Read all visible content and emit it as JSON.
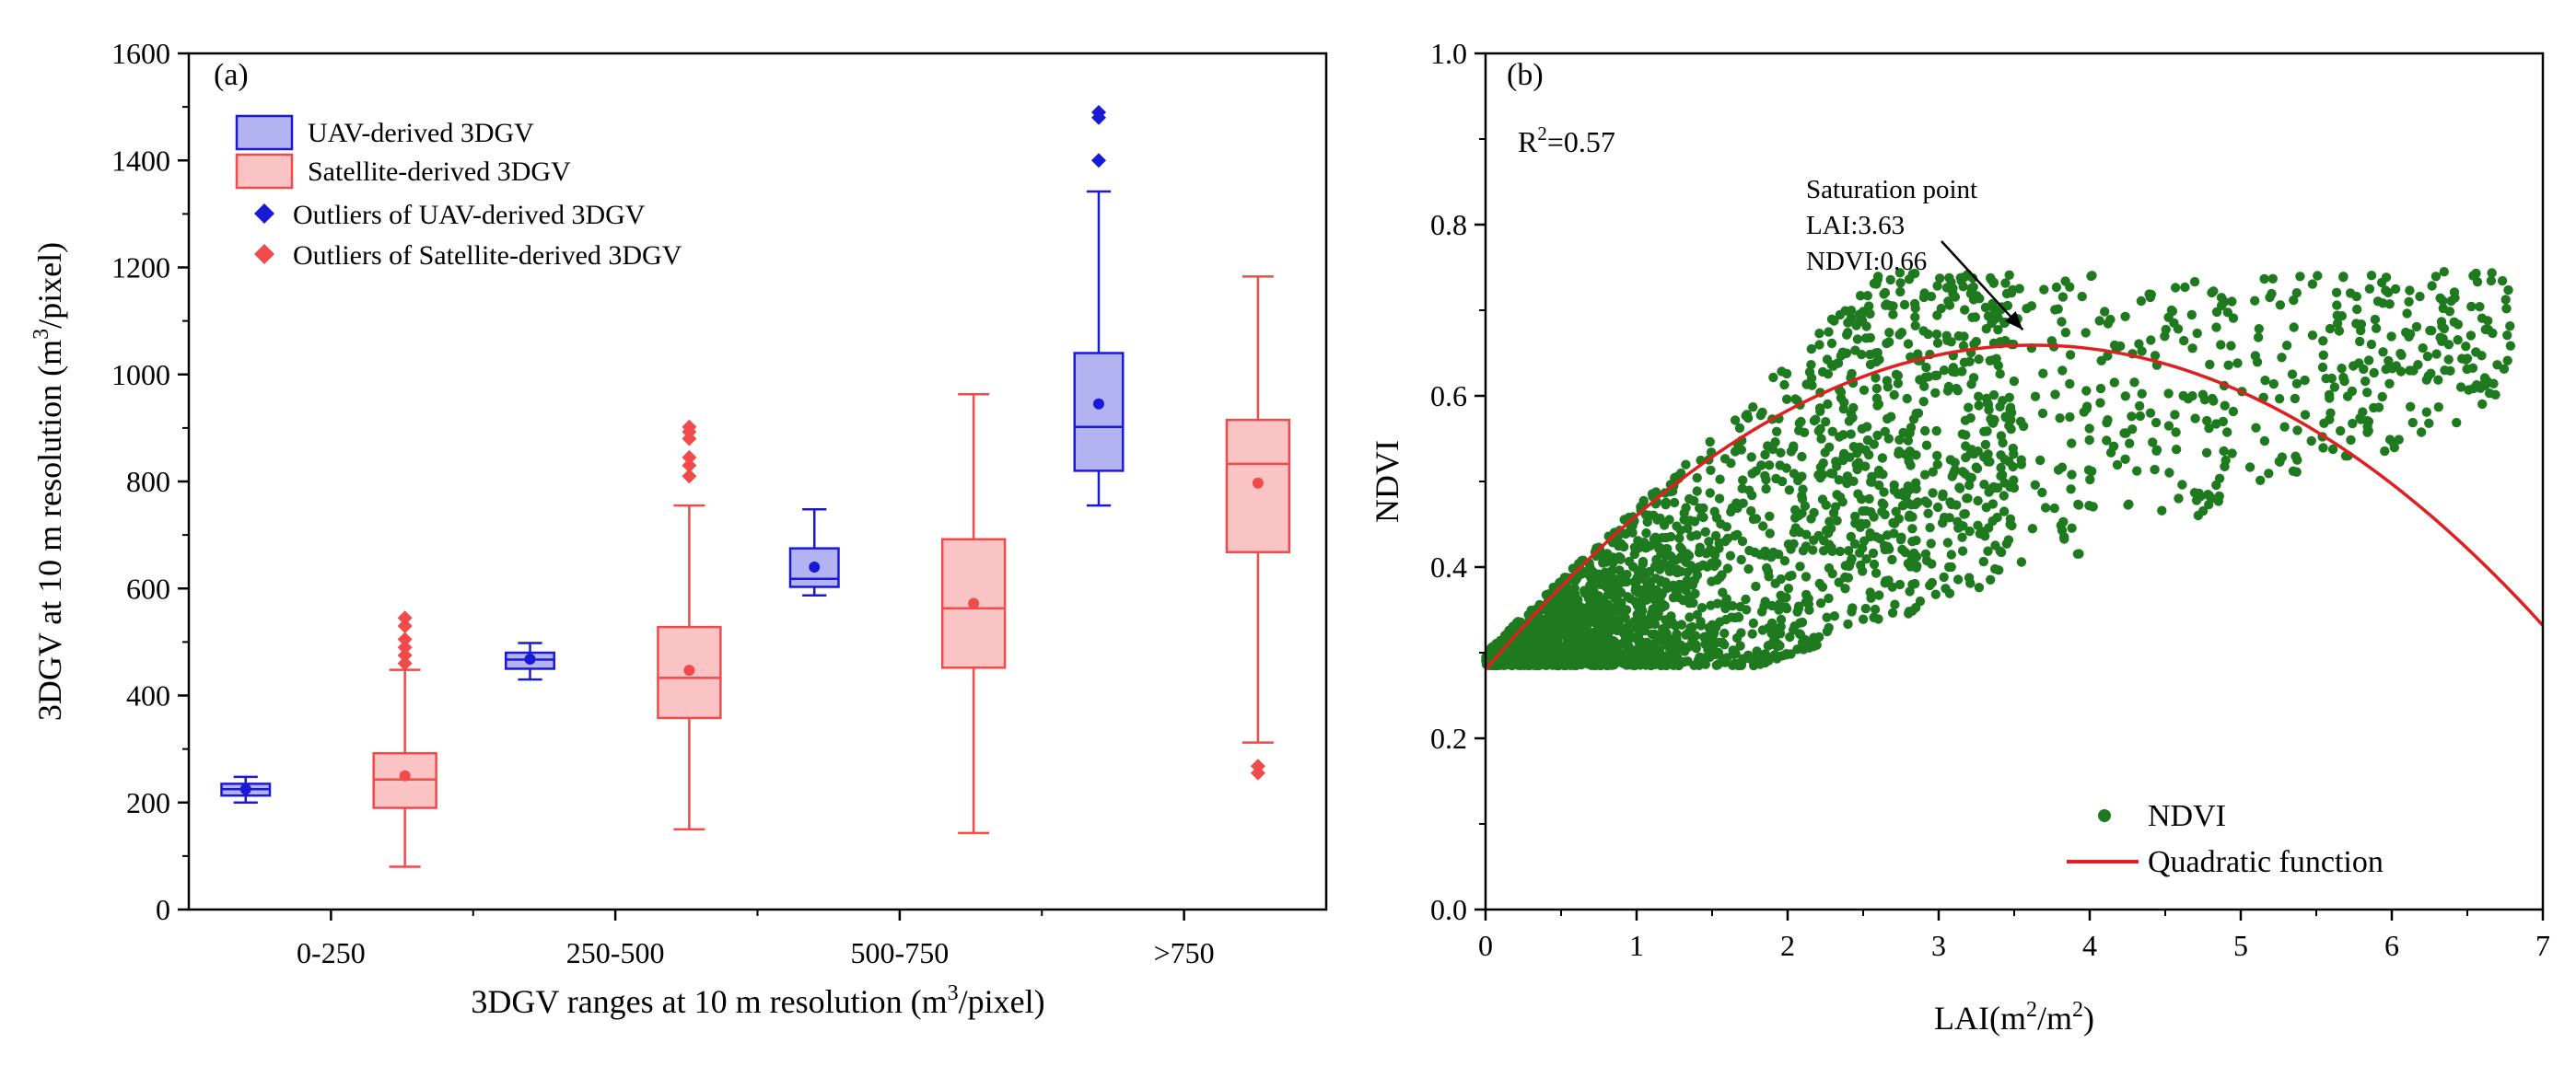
{
  "chart_data": [
    {
      "panel": "(a)",
      "type": "box",
      "xlabel_text": "3DGV ranges at 10 m resolution (m",
      "xlabel_sup": "3",
      "xlabel_end": "/pixel)",
      "ylabel_text": "3DGV at 10 m resolution (m",
      "ylabel_sup": "3",
      "ylabel_end": "/pixel)",
      "ylim": [
        0,
        1600
      ],
      "yticks": [
        "0",
        "200",
        "400",
        "600",
        "800",
        "1000",
        "1200",
        "1400",
        "1600"
      ],
      "categories": [
        "0-250",
        "250-500",
        "500-750",
        ">750"
      ],
      "legend": [
        {
          "label": "UAV-derived 3DGV",
          "kind": "box",
          "color": "#1a1ad6"
        },
        {
          "label": "Satellite-derived 3DGV",
          "kind": "box",
          "color": "#f04a4a"
        },
        {
          "label": "Outliers of UAV-derived 3DGV",
          "kind": "diamond",
          "color": "#1a1ad6"
        },
        {
          "label": "Outliers of Satellite-derived 3DGV",
          "kind": "diamond",
          "color": "#f04a4a"
        }
      ],
      "series": [
        {
          "name": "UAV-derived 3DGV",
          "color": "#1a1ad6",
          "fill": "#b3b3f2",
          "boxes": [
            {
              "category": "0-250",
              "min": 200,
              "q1": 213,
              "median": 225,
              "q3": 235,
              "max": 248,
              "mean": 225,
              "outliers": []
            },
            {
              "category": "250-500",
              "min": 430,
              "q1": 450,
              "median": 467,
              "q3": 480,
              "max": 498,
              "mean": 468,
              "outliers": []
            },
            {
              "category": "500-750",
              "min": 587,
              "q1": 603,
              "median": 618,
              "q3": 675,
              "max": 748,
              "mean": 640,
              "outliers": []
            },
            {
              "category": ">750",
              "min": 755,
              "q1": 820,
              "median": 902,
              "q3": 1040,
              "max": 1342,
              "mean": 945,
              "outliers": [
                1400,
                1480,
                1490
              ]
            }
          ]
        },
        {
          "name": "Satellite-derived 3DGV",
          "color": "#f04a4a",
          "fill": "#fbc4c4",
          "boxes": [
            {
              "category": "0-250",
              "min": 80,
              "q1": 190,
              "median": 243,
              "q3": 292,
              "max": 448,
              "mean": 250,
              "outliers": [
                460,
                475,
                490,
                505,
                530,
                545
              ]
            },
            {
              "category": "250-500",
              "min": 150,
              "q1": 358,
              "median": 433,
              "q3": 528,
              "max": 755,
              "mean": 447,
              "outliers": [
                810,
                830,
                845,
                880,
                893,
                902
              ]
            },
            {
              "category": "500-750",
              "min": 143,
              "q1": 452,
              "median": 563,
              "q3": 692,
              "max": 963,
              "mean": 572,
              "outliers": []
            },
            {
              "category": ">750",
              "min": 312,
              "q1": 668,
              "median": 833,
              "q3": 915,
              "max": 1183,
              "mean": 797,
              "outliers": [
                255,
                268
              ]
            }
          ]
        }
      ]
    },
    {
      "panel": "(b)",
      "type": "scatter",
      "xlabel_text": "LAI(m",
      "xlabel_sup": "2",
      "xlabel_mid": "/m",
      "xlabel_sup2": "2",
      "xlabel_end": ")",
      "ylabel": "NDVI",
      "xlim": [
        0,
        7
      ],
      "ylim": [
        0,
        1
      ],
      "xticks": [
        "0",
        "1",
        "2",
        "3",
        "4",
        "5",
        "6",
        "7"
      ],
      "yticks": [
        "0.0",
        "0.2",
        "0.4",
        "0.6",
        "0.8",
        "1.0"
      ],
      "r2_label": "R",
      "r2_sup": "2",
      "r2_value": "=0.57",
      "annotation": [
        "Saturation point",
        "LAI:3.63",
        "NDVI:0.66"
      ],
      "saturation_point": {
        "x": 3.63,
        "y": 0.66
      },
      "curve": {
        "name": "Quadratic function",
        "color": "#e02020",
        "a": -0.0288,
        "b": 0.209,
        "c": 0.28
      },
      "scatter_color": "#1f7a1f",
      "legend": [
        {
          "label": "NDVI",
          "kind": "dot",
          "color": "#1f7a1f"
        },
        {
          "label": "Quadratic function",
          "kind": "line",
          "color": "#e02020"
        }
      ],
      "point_count": 2600
    }
  ]
}
